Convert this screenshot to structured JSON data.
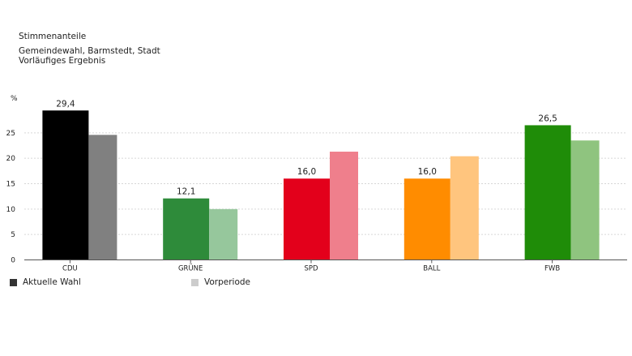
{
  "header": {
    "title": "Stimmenanteile",
    "subtitle_line1": "Gemeindewahl, Barmstedt, Stadt",
    "subtitle_line2": "Vorläufiges Ergebnis"
  },
  "chart_data": {
    "type": "bar",
    "unit_label": "%",
    "categories": [
      "CDU",
      "GRÜNE",
      "SPD",
      "BALL",
      "FWB"
    ],
    "series": [
      {
        "name": "Aktuelle Wahl",
        "values": [
          29.4,
          12.1,
          16.0,
          16.0,
          26.5
        ],
        "labels": [
          "29,4",
          "12,1",
          "16,0",
          "16,0",
          "26,5"
        ]
      },
      {
        "name": "Vorperiode",
        "values": [
          24.6,
          10.0,
          21.3,
          20.4,
          23.5
        ]
      }
    ],
    "colors_current": [
      "#000000",
      "#2e8b3a",
      "#e3001b",
      "#ff8c00",
      "#1f8c08"
    ],
    "colors_previous": [
      "#808080",
      "#96c79c",
      "#ef7f8c",
      "#ffc57e",
      "#8fc47f"
    ],
    "yticks": [
      0,
      5,
      10,
      15,
      20,
      25
    ],
    "ytick_labels": [
      "0",
      "5",
      "10",
      "15",
      "20",
      "25"
    ],
    "ylim": [
      0,
      30
    ],
    "grid": true,
    "legend_position": "bottom-left"
  },
  "legend": {
    "current_label": "Aktuelle Wahl",
    "previous_label": "Vorperiode",
    "current_color": "#333333",
    "previous_color": "#cccccc"
  }
}
